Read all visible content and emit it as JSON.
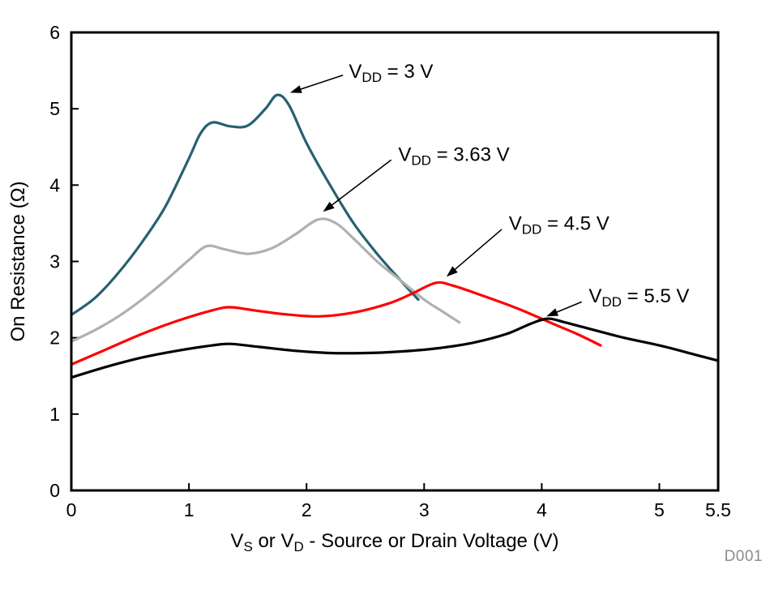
{
  "chart_data": {
    "type": "line",
    "title": "",
    "xlabel_segments": [
      {
        "t": "V"
      },
      {
        "t": "S",
        "sub": true
      },
      {
        "t": " or V"
      },
      {
        "t": "D",
        "sub": true
      },
      {
        "t": " - Source or Drain Voltage (V)"
      }
    ],
    "xlabel_plain": "VS or VD - Source or Drain Voltage (V)",
    "ylabel": "On Resistance (Ω)",
    "xlim": [
      0,
      5.5
    ],
    "ylim": [
      0,
      6
    ],
    "xticks": {
      "values": [
        0,
        1,
        2,
        3,
        4,
        5,
        5.5
      ],
      "labels": [
        "0",
        "1",
        "2",
        "3",
        "4",
        "5",
        "5.5"
      ]
    },
    "yticks": {
      "values": [
        0,
        1,
        2,
        3,
        4,
        5,
        6
      ],
      "labels": [
        "0",
        "1",
        "2",
        "3",
        "4",
        "5",
        "6"
      ]
    },
    "grid": false,
    "legend_position": "none",
    "frame_color": "#000000",
    "series": [
      {
        "name": "VDD = 3 V",
        "slug": "vdd-3v",
        "color": "#26616f",
        "points": [
          [
            0,
            2.3
          ],
          [
            0.2,
            2.52
          ],
          [
            0.4,
            2.85
          ],
          [
            0.6,
            3.25
          ],
          [
            0.8,
            3.72
          ],
          [
            1.0,
            4.35
          ],
          [
            1.1,
            4.68
          ],
          [
            1.2,
            4.82
          ],
          [
            1.35,
            4.77
          ],
          [
            1.5,
            4.78
          ],
          [
            1.65,
            5.0
          ],
          [
            1.75,
            5.18
          ],
          [
            1.85,
            5.05
          ],
          [
            2.0,
            4.55
          ],
          [
            2.2,
            4.0
          ],
          [
            2.4,
            3.5
          ],
          [
            2.6,
            3.1
          ],
          [
            2.8,
            2.75
          ],
          [
            2.95,
            2.5
          ]
        ]
      },
      {
        "name": "VDD = 3.63 V",
        "slug": "vdd-3-63v",
        "color": "#b0b0b0",
        "points": [
          [
            0,
            1.95
          ],
          [
            0.2,
            2.1
          ],
          [
            0.4,
            2.28
          ],
          [
            0.6,
            2.5
          ],
          [
            0.8,
            2.75
          ],
          [
            1.0,
            3.02
          ],
          [
            1.15,
            3.2
          ],
          [
            1.3,
            3.16
          ],
          [
            1.5,
            3.1
          ],
          [
            1.7,
            3.17
          ],
          [
            1.9,
            3.35
          ],
          [
            2.1,
            3.55
          ],
          [
            2.25,
            3.5
          ],
          [
            2.4,
            3.3
          ],
          [
            2.6,
            3.0
          ],
          [
            2.8,
            2.75
          ],
          [
            3.0,
            2.5
          ],
          [
            3.15,
            2.35
          ],
          [
            3.3,
            2.2
          ]
        ]
      },
      {
        "name": "VDD = 4.5 V",
        "slug": "vdd-4-5v",
        "color": "#ff0000",
        "points": [
          [
            0,
            1.65
          ],
          [
            0.3,
            1.85
          ],
          [
            0.6,
            2.05
          ],
          [
            0.9,
            2.22
          ],
          [
            1.2,
            2.36
          ],
          [
            1.35,
            2.4
          ],
          [
            1.55,
            2.36
          ],
          [
            1.8,
            2.31
          ],
          [
            2.1,
            2.28
          ],
          [
            2.4,
            2.33
          ],
          [
            2.7,
            2.45
          ],
          [
            2.9,
            2.58
          ],
          [
            3.1,
            2.72
          ],
          [
            3.25,
            2.68
          ],
          [
            3.5,
            2.55
          ],
          [
            3.8,
            2.38
          ],
          [
            4.1,
            2.18
          ],
          [
            4.3,
            2.05
          ],
          [
            4.5,
            1.9
          ]
        ]
      },
      {
        "name": "VDD = 5.5 V",
        "slug": "vdd-5-5v",
        "color": "#000000",
        "points": [
          [
            0,
            1.48
          ],
          [
            0.3,
            1.62
          ],
          [
            0.6,
            1.74
          ],
          [
            0.9,
            1.83
          ],
          [
            1.2,
            1.9
          ],
          [
            1.35,
            1.92
          ],
          [
            1.6,
            1.88
          ],
          [
            1.9,
            1.83
          ],
          [
            2.2,
            1.8
          ],
          [
            2.5,
            1.8
          ],
          [
            2.8,
            1.82
          ],
          [
            3.1,
            1.86
          ],
          [
            3.4,
            1.93
          ],
          [
            3.7,
            2.05
          ],
          [
            3.9,
            2.18
          ],
          [
            4.05,
            2.25
          ],
          [
            4.2,
            2.2
          ],
          [
            4.4,
            2.12
          ],
          [
            4.7,
            2.0
          ],
          [
            5.0,
            1.9
          ],
          [
            5.3,
            1.78
          ],
          [
            5.5,
            1.7
          ]
        ]
      }
    ],
    "annotations": [
      {
        "pre": "V",
        "sub": "DD",
        "post": " = 3 V",
        "text_at": [
          2.36,
          5.49
        ],
        "arrow_from": [
          2.31,
          5.44
        ],
        "arrow_to": [
          1.86,
          5.21
        ]
      },
      {
        "pre": "V",
        "sub": "DD",
        "post": " = 3.63 V",
        "text_at": [
          2.78,
          4.4
        ],
        "arrow_from": [
          2.72,
          4.33
        ],
        "arrow_to": [
          2.14,
          3.65
        ]
      },
      {
        "pre": "V",
        "sub": "DD",
        "post": " = 4.5 V",
        "text_at": [
          3.72,
          3.5
        ],
        "arrow_from": [
          3.66,
          3.42
        ],
        "arrow_to": [
          3.19,
          2.8
        ]
      },
      {
        "pre": "V",
        "sub": "DD",
        "post": " = 5.5 V",
        "text_at": [
          4.4,
          2.55
        ],
        "arrow_from": [
          4.34,
          2.47
        ],
        "arrow_to": [
          4.04,
          2.28
        ]
      }
    ],
    "watermark": "D001",
    "text_color": "#000000"
  }
}
